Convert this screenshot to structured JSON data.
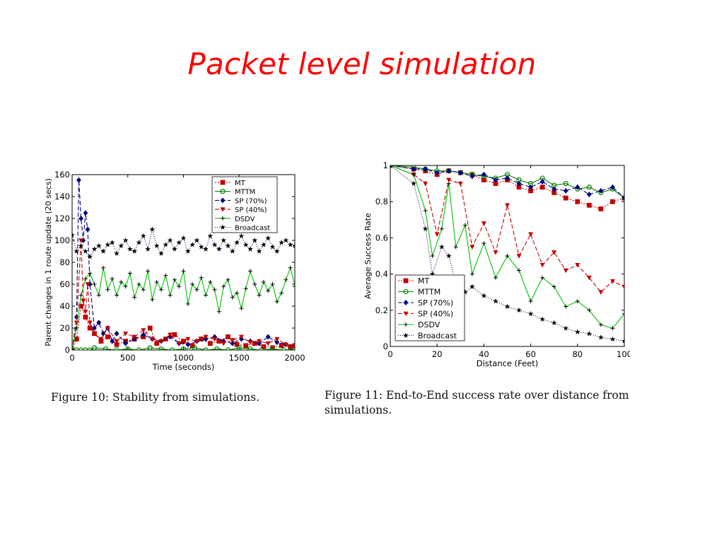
{
  "slide": {
    "title": "Packet level simulation",
    "caption1": "Figure 10: Stability from simulations.",
    "caption2": "Figure 11:  End-to-End success rate over distance from simulations."
  },
  "series_styles": {
    "MT": {
      "color": "#c00000",
      "marker": "square",
      "dash": "2,2"
    },
    "MTTM": {
      "color": "#008000",
      "marker": "circle",
      "dash": ""
    },
    "SP (70%)": {
      "color": "#000080",
      "marker": "diamond",
      "dash": "6,3"
    },
    "SP (40%)": {
      "color": "#c00000",
      "marker": "triangle-down",
      "dash": "6,3"
    },
    "DSDV": {
      "color": "#00c000",
      "marker": "plus",
      "dash": ""
    },
    "Broadcast": {
      "color": "#000060",
      "marker": "star",
      "dash": "1,2"
    }
  },
  "chart_data": [
    {
      "type": "line",
      "title": "",
      "xlabel": "Time (seconds)",
      "ylabel": "Parent changes in 1 route update (20 secs)",
      "xlim": [
        0,
        2000
      ],
      "ylim": [
        0,
        160
      ],
      "xticks": [
        0,
        500,
        1000,
        1500,
        2000
      ],
      "yticks": [
        0,
        20,
        40,
        60,
        80,
        100,
        120,
        140,
        160
      ],
      "legend_position": "top-right",
      "legend": [
        "MT",
        "MTTM",
        "SP (70%)",
        "SP (40%)",
        "DSDV",
        "Broadcast"
      ],
      "series": [
        {
          "name": "MT",
          "x": [
            0,
            40,
            80,
            120,
            160,
            200,
            260,
            320,
            400,
            480,
            560,
            640,
            700,
            760,
            840,
            920,
            1000,
            1080,
            1160,
            1240,
            1320,
            1400,
            1480,
            1560,
            1640,
            1720,
            1800,
            1880,
            1960,
            2000
          ],
          "values": [
            0,
            10,
            40,
            30,
            20,
            15,
            8,
            12,
            5,
            8,
            10,
            12,
            20,
            6,
            10,
            14,
            8,
            4,
            10,
            6,
            8,
            12,
            5,
            4,
            6,
            3,
            2,
            4,
            3,
            4
          ]
        },
        {
          "name": "MTTM",
          "x": [
            0,
            40,
            80,
            120,
            160,
            200,
            300,
            400,
            500,
            600,
            700,
            800,
            900,
            1000,
            1100,
            1200,
            1300,
            1400,
            1500,
            1600,
            1700,
            1800,
            1900,
            2000
          ],
          "values": [
            0,
            0,
            0,
            0,
            0,
            2,
            1,
            0,
            1,
            0,
            2,
            1,
            0,
            1,
            2,
            0,
            1,
            0,
            2,
            1,
            0,
            1,
            0,
            1
          ]
        },
        {
          "name": "SP (70%)",
          "x": [
            0,
            40,
            60,
            80,
            100,
            120,
            140,
            160,
            200,
            240,
            280,
            320,
            360,
            400,
            480,
            560,
            640,
            720,
            800,
            880,
            960,
            1040,
            1120,
            1200,
            1280,
            1360,
            1440,
            1520,
            1600,
            1680,
            1760,
            1840,
            1920,
            2000
          ],
          "values": [
            0,
            30,
            155,
            120,
            100,
            125,
            110,
            60,
            20,
            25,
            15,
            20,
            8,
            15,
            6,
            10,
            14,
            10,
            8,
            12,
            6,
            5,
            8,
            10,
            12,
            8,
            6,
            10,
            8,
            6,
            12,
            7,
            5,
            4
          ]
        },
        {
          "name": "SP (40%)",
          "x": [
            0,
            40,
            80,
            100,
            120,
            140,
            160,
            200,
            260,
            320,
            400,
            480,
            560,
            640,
            720,
            800,
            880,
            960,
            1040,
            1120,
            1200,
            1280,
            1360,
            1440,
            1520,
            1600,
            1680,
            1760,
            1840,
            1920,
            2000
          ],
          "values": [
            0,
            25,
            100,
            45,
            35,
            60,
            25,
            15,
            10,
            20,
            8,
            15,
            12,
            18,
            10,
            8,
            14,
            6,
            10,
            8,
            12,
            10,
            6,
            9,
            12,
            7,
            8,
            6,
            10,
            5,
            4
          ]
        },
        {
          "name": "DSDV",
          "x": [
            0,
            40,
            80,
            120,
            160,
            200,
            240,
            280,
            320,
            360,
            400,
            440,
            480,
            520,
            560,
            600,
            640,
            680,
            720,
            760,
            800,
            840,
            880,
            920,
            960,
            1000,
            1040,
            1080,
            1120,
            1160,
            1200,
            1240,
            1280,
            1320,
            1360,
            1400,
            1440,
            1480,
            1520,
            1560,
            1600,
            1640,
            1680,
            1720,
            1760,
            1800,
            1840,
            1880,
            1920,
            1960,
            2000
          ],
          "values": [
            0,
            20,
            50,
            65,
            70,
            60,
            50,
            75,
            55,
            65,
            50,
            62,
            58,
            70,
            48,
            60,
            55,
            72,
            46,
            62,
            55,
            68,
            50,
            64,
            58,
            72,
            42,
            60,
            55,
            66,
            50,
            62,
            55,
            35,
            58,
            64,
            48,
            52,
            38,
            56,
            72,
            60,
            50,
            62,
            54,
            60,
            44,
            52,
            64,
            75,
            58
          ]
        },
        {
          "name": "Broadcast",
          "x": [
            0,
            40,
            80,
            120,
            160,
            200,
            240,
            280,
            320,
            360,
            400,
            440,
            480,
            520,
            560,
            600,
            640,
            680,
            720,
            760,
            800,
            840,
            880,
            920,
            960,
            1000,
            1040,
            1080,
            1120,
            1160,
            1200,
            1240,
            1280,
            1320,
            1360,
            1400,
            1440,
            1480,
            1520,
            1560,
            1600,
            1640,
            1680,
            1720,
            1760,
            1800,
            1840,
            1880,
            1920,
            1960,
            2000
          ],
          "values": [
            105,
            90,
            95,
            90,
            85,
            92,
            95,
            90,
            96,
            98,
            88,
            95,
            100,
            92,
            90,
            98,
            104,
            92,
            110,
            95,
            88,
            96,
            100,
            92,
            98,
            102,
            90,
            96,
            100,
            94,
            92,
            104,
            96,
            92,
            100,
            95,
            90,
            98,
            104,
            96,
            92,
            100,
            90,
            96,
            102,
            94,
            90,
            98,
            100,
            96,
            95
          ]
        }
      ]
    },
    {
      "type": "line",
      "title": "",
      "xlabel": "Distance (Feet)",
      "ylabel": "Average Success Rate",
      "xlim": [
        0,
        100
      ],
      "ylim": [
        0,
        1
      ],
      "xticks": [
        0,
        20,
        40,
        60,
        80,
        100
      ],
      "yticks": [
        0,
        0.2,
        0.4,
        0.6,
        0.8,
        1
      ],
      "legend_position": "bottom-left",
      "legend": [
        "MT",
        "MTTM",
        "SP (70%)",
        "SP (40%)",
        "DSDV",
        "Broadcast"
      ],
      "series": [
        {
          "name": "MT",
          "x": [
            0,
            10,
            15,
            20,
            25,
            30,
            35,
            40,
            45,
            50,
            55,
            60,
            65,
            70,
            75,
            80,
            85,
            90,
            95,
            100
          ],
          "values": [
            1.0,
            0.98,
            0.97,
            0.95,
            0.97,
            0.96,
            0.95,
            0.92,
            0.9,
            0.92,
            0.88,
            0.86,
            0.88,
            0.85,
            0.82,
            0.8,
            0.78,
            0.76,
            0.8,
            0.82
          ]
        },
        {
          "name": "MTTM",
          "x": [
            0,
            10,
            15,
            20,
            25,
            30,
            35,
            40,
            45,
            50,
            55,
            60,
            65,
            70,
            75,
            80,
            85,
            90,
            95,
            100
          ],
          "values": [
            1.0,
            0.99,
            0.98,
            0.97,
            0.97,
            0.96,
            0.95,
            0.94,
            0.93,
            0.95,
            0.92,
            0.9,
            0.93,
            0.89,
            0.9,
            0.87,
            0.88,
            0.85,
            0.87,
            0.82
          ]
        },
        {
          "name": "SP (70%)",
          "x": [
            0,
            10,
            15,
            20,
            25,
            30,
            35,
            40,
            45,
            50,
            55,
            60,
            65,
            70,
            75,
            80,
            85,
            90,
            95,
            100
          ],
          "values": [
            1.0,
            0.98,
            0.98,
            0.96,
            0.97,
            0.96,
            0.94,
            0.95,
            0.92,
            0.93,
            0.9,
            0.88,
            0.91,
            0.87,
            0.86,
            0.88,
            0.84,
            0.86,
            0.88,
            0.82
          ]
        },
        {
          "name": "SP (40%)",
          "x": [
            0,
            10,
            15,
            20,
            25,
            30,
            35,
            40,
            45,
            50,
            55,
            60,
            65,
            70,
            75,
            80,
            85,
            90,
            95,
            100
          ],
          "values": [
            1.0,
            0.95,
            0.9,
            0.62,
            0.92,
            0.9,
            0.55,
            0.68,
            0.52,
            0.78,
            0.5,
            0.62,
            0.45,
            0.52,
            0.42,
            0.45,
            0.38,
            0.3,
            0.36,
            0.33
          ]
        },
        {
          "name": "DSDV",
          "x": [
            0,
            10,
            15,
            18,
            22,
            25,
            28,
            32,
            35,
            40,
            45,
            50,
            55,
            60,
            65,
            70,
            75,
            80,
            85,
            90,
            95,
            100
          ],
          "values": [
            1.0,
            0.95,
            0.75,
            0.5,
            0.65,
            0.9,
            0.55,
            0.67,
            0.4,
            0.57,
            0.38,
            0.5,
            0.42,
            0.25,
            0.38,
            0.33,
            0.22,
            0.25,
            0.2,
            0.12,
            0.1,
            0.18
          ]
        },
        {
          "name": "Broadcast",
          "x": [
            0,
            10,
            15,
            18,
            22,
            25,
            28,
            32,
            35,
            40,
            45,
            50,
            55,
            60,
            65,
            70,
            75,
            80,
            85,
            90,
            95,
            100
          ],
          "values": [
            1.0,
            0.9,
            0.65,
            0.4,
            0.55,
            0.5,
            0.35,
            0.3,
            0.33,
            0.28,
            0.25,
            0.22,
            0.2,
            0.18,
            0.15,
            0.13,
            0.1,
            0.08,
            0.07,
            0.05,
            0.04,
            0.03
          ]
        }
      ]
    }
  ]
}
